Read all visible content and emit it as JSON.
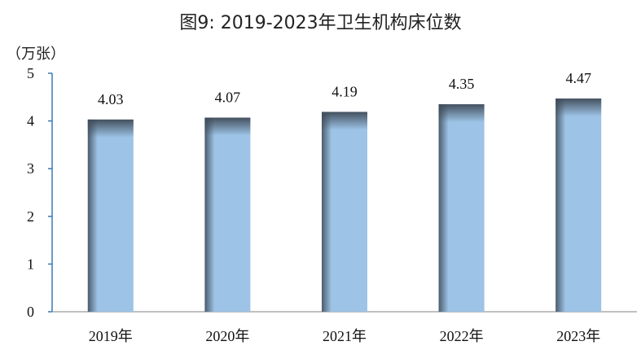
{
  "chart_data": {
    "type": "bar",
    "title": "图9: 2019-2023年卫生机构床位数",
    "y_unit": "（万张）",
    "categories": [
      "2019年",
      "2020年",
      "2021年",
      "2022年",
      "2023年"
    ],
    "values": [
      4.03,
      4.07,
      4.19,
      4.35,
      4.47
    ],
    "data_labels": [
      "4.03",
      "4.07",
      "4.19",
      "4.35",
      "4.47"
    ],
    "ylim": [
      0,
      5
    ],
    "yticks": [
      "0",
      "1",
      "2",
      "3",
      "4",
      "5"
    ],
    "grid": false,
    "legend": "none",
    "colors": {
      "bar": "#9DC3E6",
      "bar_shade": "#3E4A57",
      "axis": "#3A78B5"
    }
  }
}
